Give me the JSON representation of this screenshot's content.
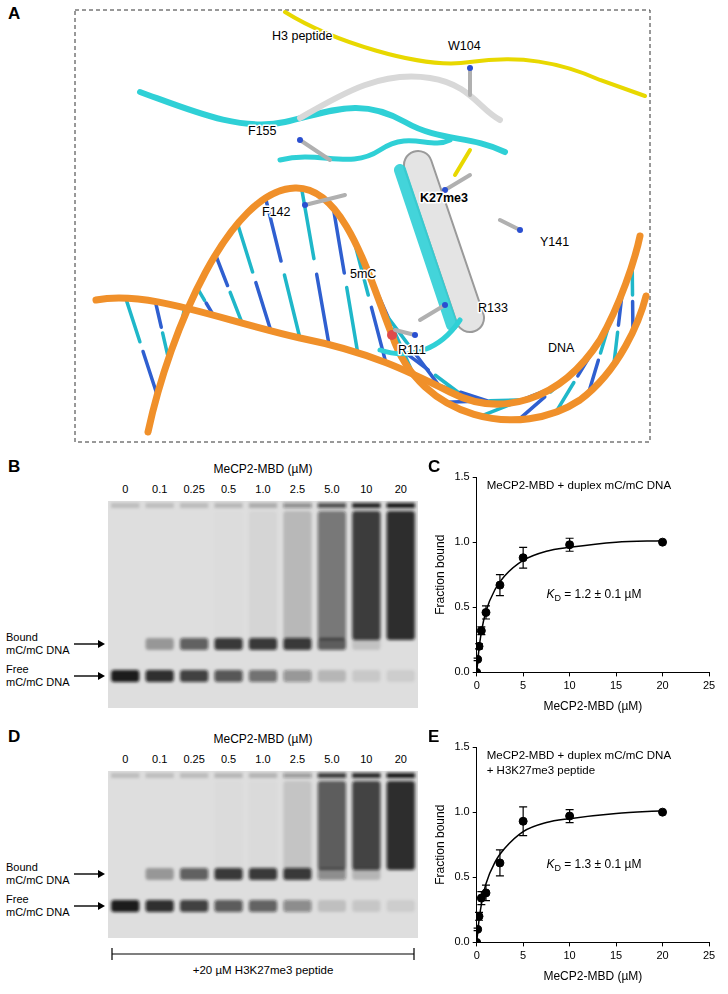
{
  "figure": {
    "panel_a": {
      "letter": "A",
      "labels": [
        "H3 peptide",
        "W104",
        "F155",
        "F142",
        "K27me3",
        "Y141",
        "5mC",
        "R133",
        "R111",
        "DNA"
      ]
    },
    "gels": [
      {
        "letter": "B",
        "header": "MeCP2-MBD (µM)",
        "lanes": [
          "0",
          "0.1",
          "0.25",
          "0.5",
          "1.0",
          "2.5",
          "5.0",
          "10",
          "20"
        ],
        "band_labels": [
          "Bound mC/mC DNA",
          "Free mC/mC DNA"
        ]
      },
      {
        "letter": "D",
        "header": "MeCP2-MBD (µM)",
        "lanes": [
          "0",
          "0.1",
          "0.25",
          "0.5",
          "1.0",
          "2.5",
          "5.0",
          "10",
          "20"
        ],
        "band_labels": [
          "Bound mC/mC DNA",
          "Free mC/mC DNA"
        ],
        "footer": "+20 µM H3K27me3 peptide"
      }
    ]
  },
  "chart_data": [
    {
      "panel": "C",
      "type": "scatter",
      "title": [
        "MeCP2-MBD + duplex mC/mC DNA"
      ],
      "annotation": "KD = 1.2 ± 0.1 µM",
      "x_label": "MeCP2-MBD (µM)",
      "y_label": "Fraction bound",
      "x": [
        0,
        0.1,
        0.25,
        0.5,
        1,
        2.5,
        5,
        10,
        20
      ],
      "values": [
        0,
        0.1,
        0.2,
        0.32,
        0.46,
        0.67,
        0.88,
        0.98,
        1.0
      ],
      "errors": [
        0,
        0.01,
        0.02,
        0.03,
        0.05,
        0.08,
        0.08,
        0.05,
        0
      ],
      "curve": {
        "x": [
          0,
          0.25,
          0.5,
          1,
          2,
          3,
          5,
          7.5,
          10,
          15,
          20
        ],
        "values": [
          0,
          0.18,
          0.31,
          0.47,
          0.64,
          0.74,
          0.86,
          0.93,
          0.96,
          1.0,
          1.01
        ]
      },
      "color": "#000000",
      "marker": "circle",
      "line_style": "solid",
      "xlim": [
        0,
        25
      ],
      "xticks": [
        0,
        5,
        10,
        15,
        20,
        25
      ],
      "ylim": [
        0,
        1.5
      ],
      "yticks": [
        {
          "value": 0,
          "label": "0.0"
        },
        0.5,
        {
          "value": 1,
          "label": "1.0"
        },
        1.5
      ],
      "grid": false
    },
    {
      "panel": "E",
      "type": "scatter",
      "title": [
        "MeCP2-MBD + duplex mC/mC DNA",
        "+ H3K27me3 peptide"
      ],
      "annotation": "KD = 1.3 ± 0.1 µM",
      "x_label": "MeCP2-MBD (µM)",
      "y_label": "Fraction bound",
      "x": [
        0,
        0.1,
        0.25,
        0.5,
        1,
        2.5,
        5,
        10,
        20
      ],
      "values": [
        0,
        0.1,
        0.2,
        0.34,
        0.38,
        0.61,
        0.93,
        0.97,
        1.0
      ],
      "errors": [
        0,
        0.01,
        0.03,
        0.05,
        0.06,
        0.1,
        0.11,
        0.05,
        0
      ],
      "curve": {
        "x": [
          0,
          0.25,
          0.5,
          1,
          2,
          3,
          5,
          7.5,
          10,
          15,
          20
        ],
        "values": [
          0,
          0.17,
          0.29,
          0.45,
          0.62,
          0.72,
          0.85,
          0.92,
          0.95,
          0.99,
          1.01
        ]
      },
      "color": "#000000",
      "marker": "circle",
      "line_style": "solid",
      "xlim": [
        0,
        25
      ],
      "xticks": [
        0,
        5,
        10,
        15,
        20,
        25
      ],
      "ylim": [
        0,
        1.5
      ],
      "yticks": [
        {
          "value": 0,
          "label": "0.0"
        },
        0.5,
        {
          "value": 1,
          "label": "1.0"
        },
        1.5
      ],
      "grid": false
    }
  ]
}
